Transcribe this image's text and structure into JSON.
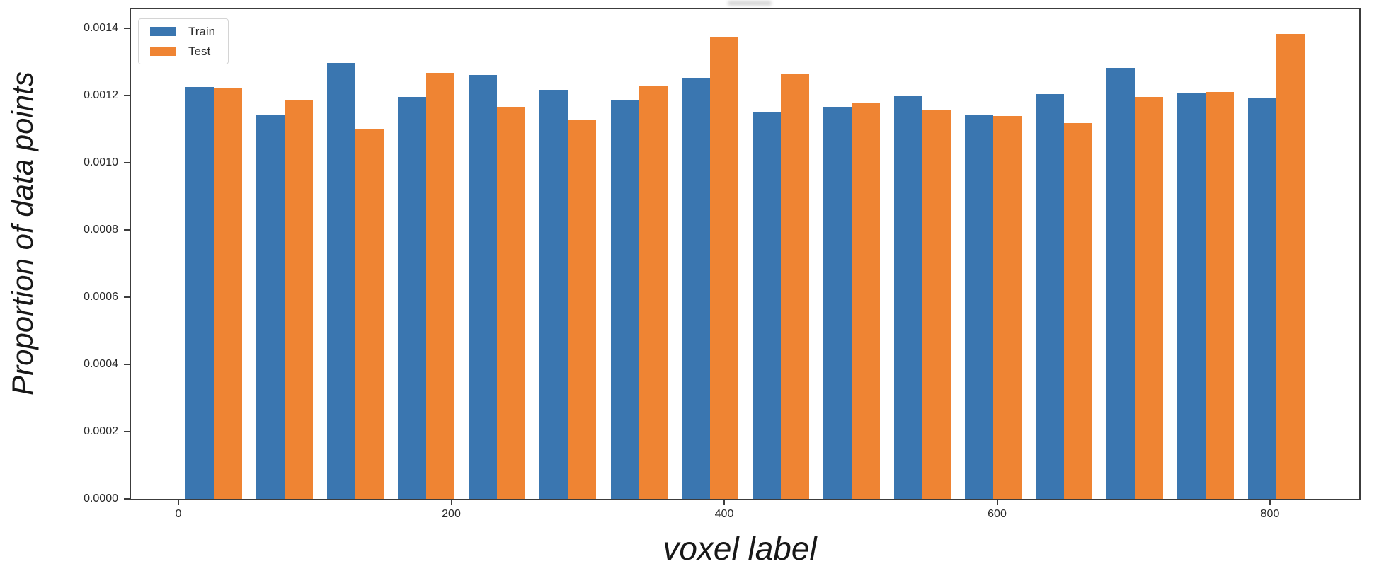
{
  "chart_data": {
    "type": "bar",
    "title": "",
    "xlabel": "voxel label",
    "ylabel": "Proportion of data points",
    "grid": false,
    "legend_position": "upper left",
    "xlim": [
      -35,
      865
    ],
    "ylim": [
      0,
      0.001457
    ],
    "x_tick_values": [
      0,
      200,
      400,
      600,
      800
    ],
    "x_tick_labels": [
      "0",
      "200",
      "400",
      "600",
      "800"
    ],
    "y_tick_values": [
      0.0,
      0.0002,
      0.0004,
      0.0006,
      0.0008,
      0.001,
      0.0012,
      0.0014
    ],
    "y_tick_labels": [
      "0.0000",
      "0.0002",
      "0.0004",
      "0.0006",
      "0.0008",
      "0.0010",
      "0.0012",
      "0.0014"
    ],
    "group_centers": [
      25.9,
      77.9,
      129.8,
      181.7,
      233.6,
      285.6,
      337.5,
      389.4,
      441.3,
      493.2,
      545.2,
      597.1,
      649.0,
      700.9,
      752.9,
      804.8
    ],
    "bar_width": 20.75,
    "series": [
      {
        "name": "Train",
        "color": "#3a76b0",
        "values": [
          0.001226,
          0.001144,
          0.001297,
          0.001196,
          0.001261,
          0.001217,
          0.001185,
          0.001253,
          0.001149,
          0.001166,
          0.001198,
          0.001143,
          0.001204,
          0.001283,
          0.001207,
          0.001192
        ]
      },
      {
        "name": "Test",
        "color": "#ef8433",
        "values": [
          0.001221,
          0.001188,
          0.0011,
          0.001267,
          0.001167,
          0.001126,
          0.001227,
          0.001373,
          0.001265,
          0.001179,
          0.001158,
          0.001139,
          0.001119,
          0.001196,
          0.00121,
          0.001383
        ]
      }
    ]
  },
  "colors": {
    "spine": "#3c3c3c",
    "tick_text": "#2b2b2b"
  }
}
